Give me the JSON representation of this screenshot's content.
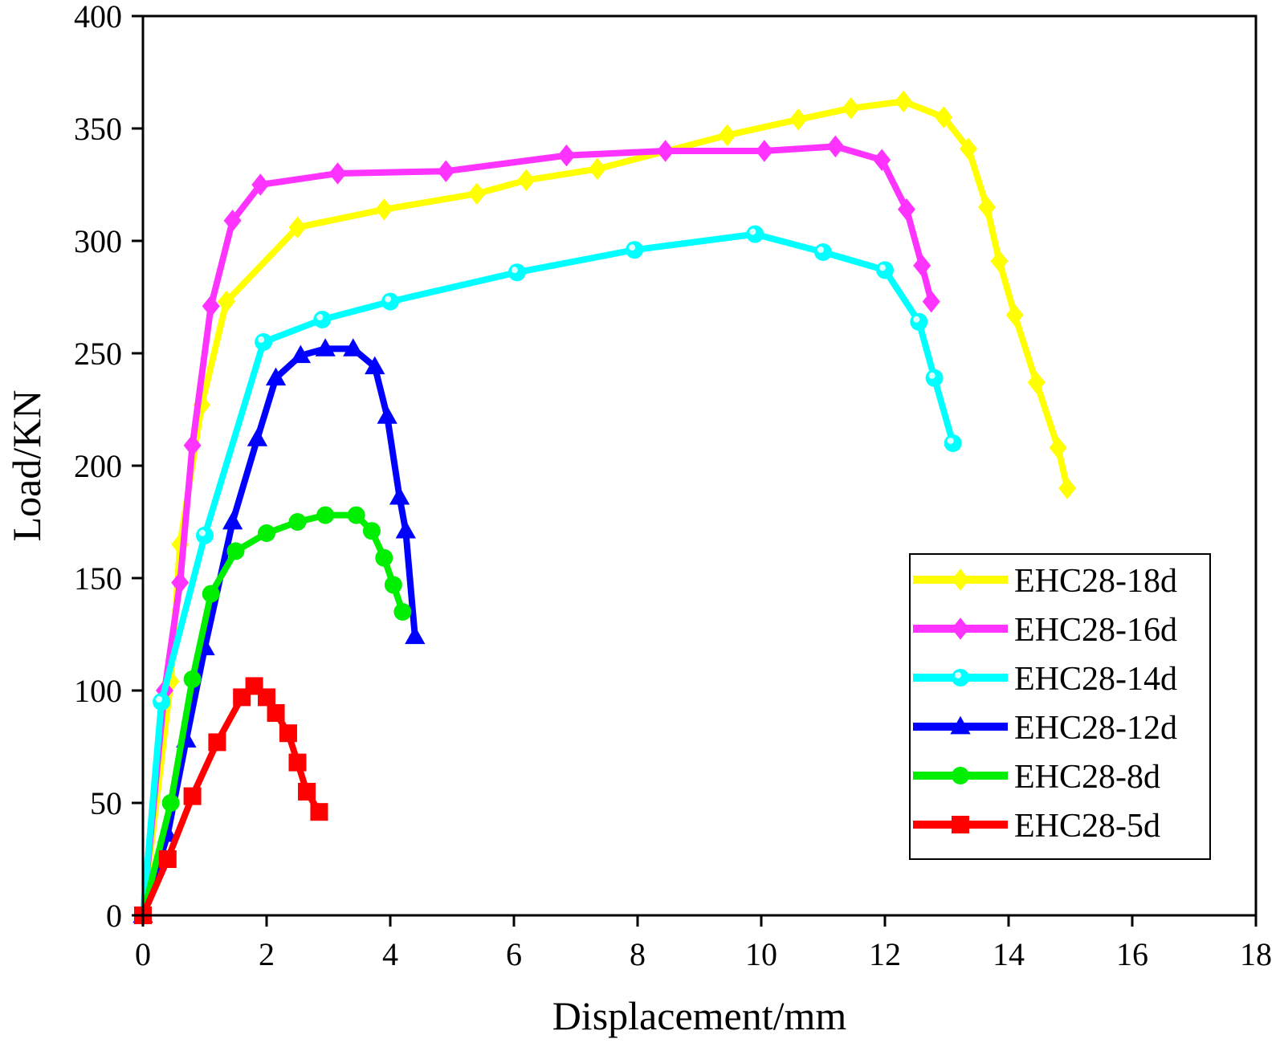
{
  "chart_data": {
    "type": "line",
    "title": "",
    "xlabel": "Displacement/mm",
    "ylabel": "Load/KN",
    "xlim": [
      0,
      18
    ],
    "ylim": [
      0,
      400
    ],
    "xticks": [
      0,
      2,
      4,
      6,
      8,
      10,
      12,
      14,
      16,
      18
    ],
    "yticks": [
      0,
      50,
      100,
      150,
      200,
      250,
      300,
      350,
      400
    ],
    "grid": false,
    "legend_position": "bottom-right",
    "series": [
      {
        "name": "EHC28-18d",
        "color": "#ffff00",
        "marker": "diamond-icon",
        "x": [
          0,
          0.45,
          0.6,
          0.95,
          1.35,
          2.5,
          3.9,
          5.4,
          6.2,
          7.35,
          9.45,
          10.6,
          11.45,
          12.3,
          12.95,
          13.35,
          13.65,
          13.85,
          14.1,
          14.45,
          14.8,
          14.95
        ],
        "y": [
          0,
          104,
          165,
          227,
          273,
          306,
          314,
          321,
          327,
          332,
          347,
          354,
          359,
          362,
          355,
          341,
          315,
          291,
          267,
          237,
          208,
          190
        ]
      },
      {
        "name": "EHC28-16d",
        "color": "#ff33ff",
        "marker": "diamond-icon",
        "x": [
          0,
          0.35,
          0.6,
          0.8,
          1.1,
          1.45,
          1.9,
          3.15,
          4.9,
          6.85,
          8.45,
          10.05,
          11.2,
          11.95,
          12.35,
          12.6,
          12.75
        ],
        "y": [
          0,
          100,
          148,
          209,
          271,
          309,
          325,
          330,
          331,
          338,
          340,
          340,
          342,
          336,
          314,
          289,
          273
        ]
      },
      {
        "name": "EHC28-14d",
        "color": "#00ffff",
        "marker": "sphere-icon",
        "x": [
          0,
          0.3,
          1.0,
          1.95,
          2.9,
          4.0,
          6.05,
          7.95,
          9.9,
          11.0,
          12.0,
          12.55,
          12.8,
          13.1
        ],
        "y": [
          0,
          95,
          169,
          255,
          265,
          273,
          286,
          296,
          303,
          295,
          287,
          264,
          239,
          210
        ]
      },
      {
        "name": "EHC28-12d",
        "color": "#0000ff",
        "marker": "triangle-icon",
        "x": [
          0,
          0.4,
          0.7,
          1.0,
          1.45,
          1.85,
          2.15,
          2.55,
          2.95,
          3.4,
          3.75,
          3.95,
          4.15,
          4.25,
          4.4
        ],
        "y": [
          0,
          36,
          78,
          119,
          175,
          212,
          239,
          249,
          252,
          252,
          244,
          222,
          186,
          171,
          124
        ]
      },
      {
        "name": "EHC28-8d",
        "color": "#00ee00",
        "marker": "circle-icon",
        "x": [
          0,
          0.45,
          0.8,
          1.1,
          1.5,
          2.0,
          2.5,
          2.95,
          3.45,
          3.7,
          3.9,
          4.05,
          4.2
        ],
        "y": [
          0,
          50,
          105,
          143,
          162,
          170,
          175,
          178,
          178,
          171,
          159,
          147,
          135
        ]
      },
      {
        "name": "EHC28-5d",
        "color": "#ff0000",
        "marker": "square-icon",
        "x": [
          0,
          0.4,
          0.8,
          1.2,
          1.6,
          1.8,
          2.0,
          2.15,
          2.35,
          2.5,
          2.65,
          2.85
        ],
        "y": [
          0,
          25,
          53,
          77,
          97,
          102,
          97,
          90,
          81,
          68,
          55,
          46
        ]
      }
    ]
  }
}
